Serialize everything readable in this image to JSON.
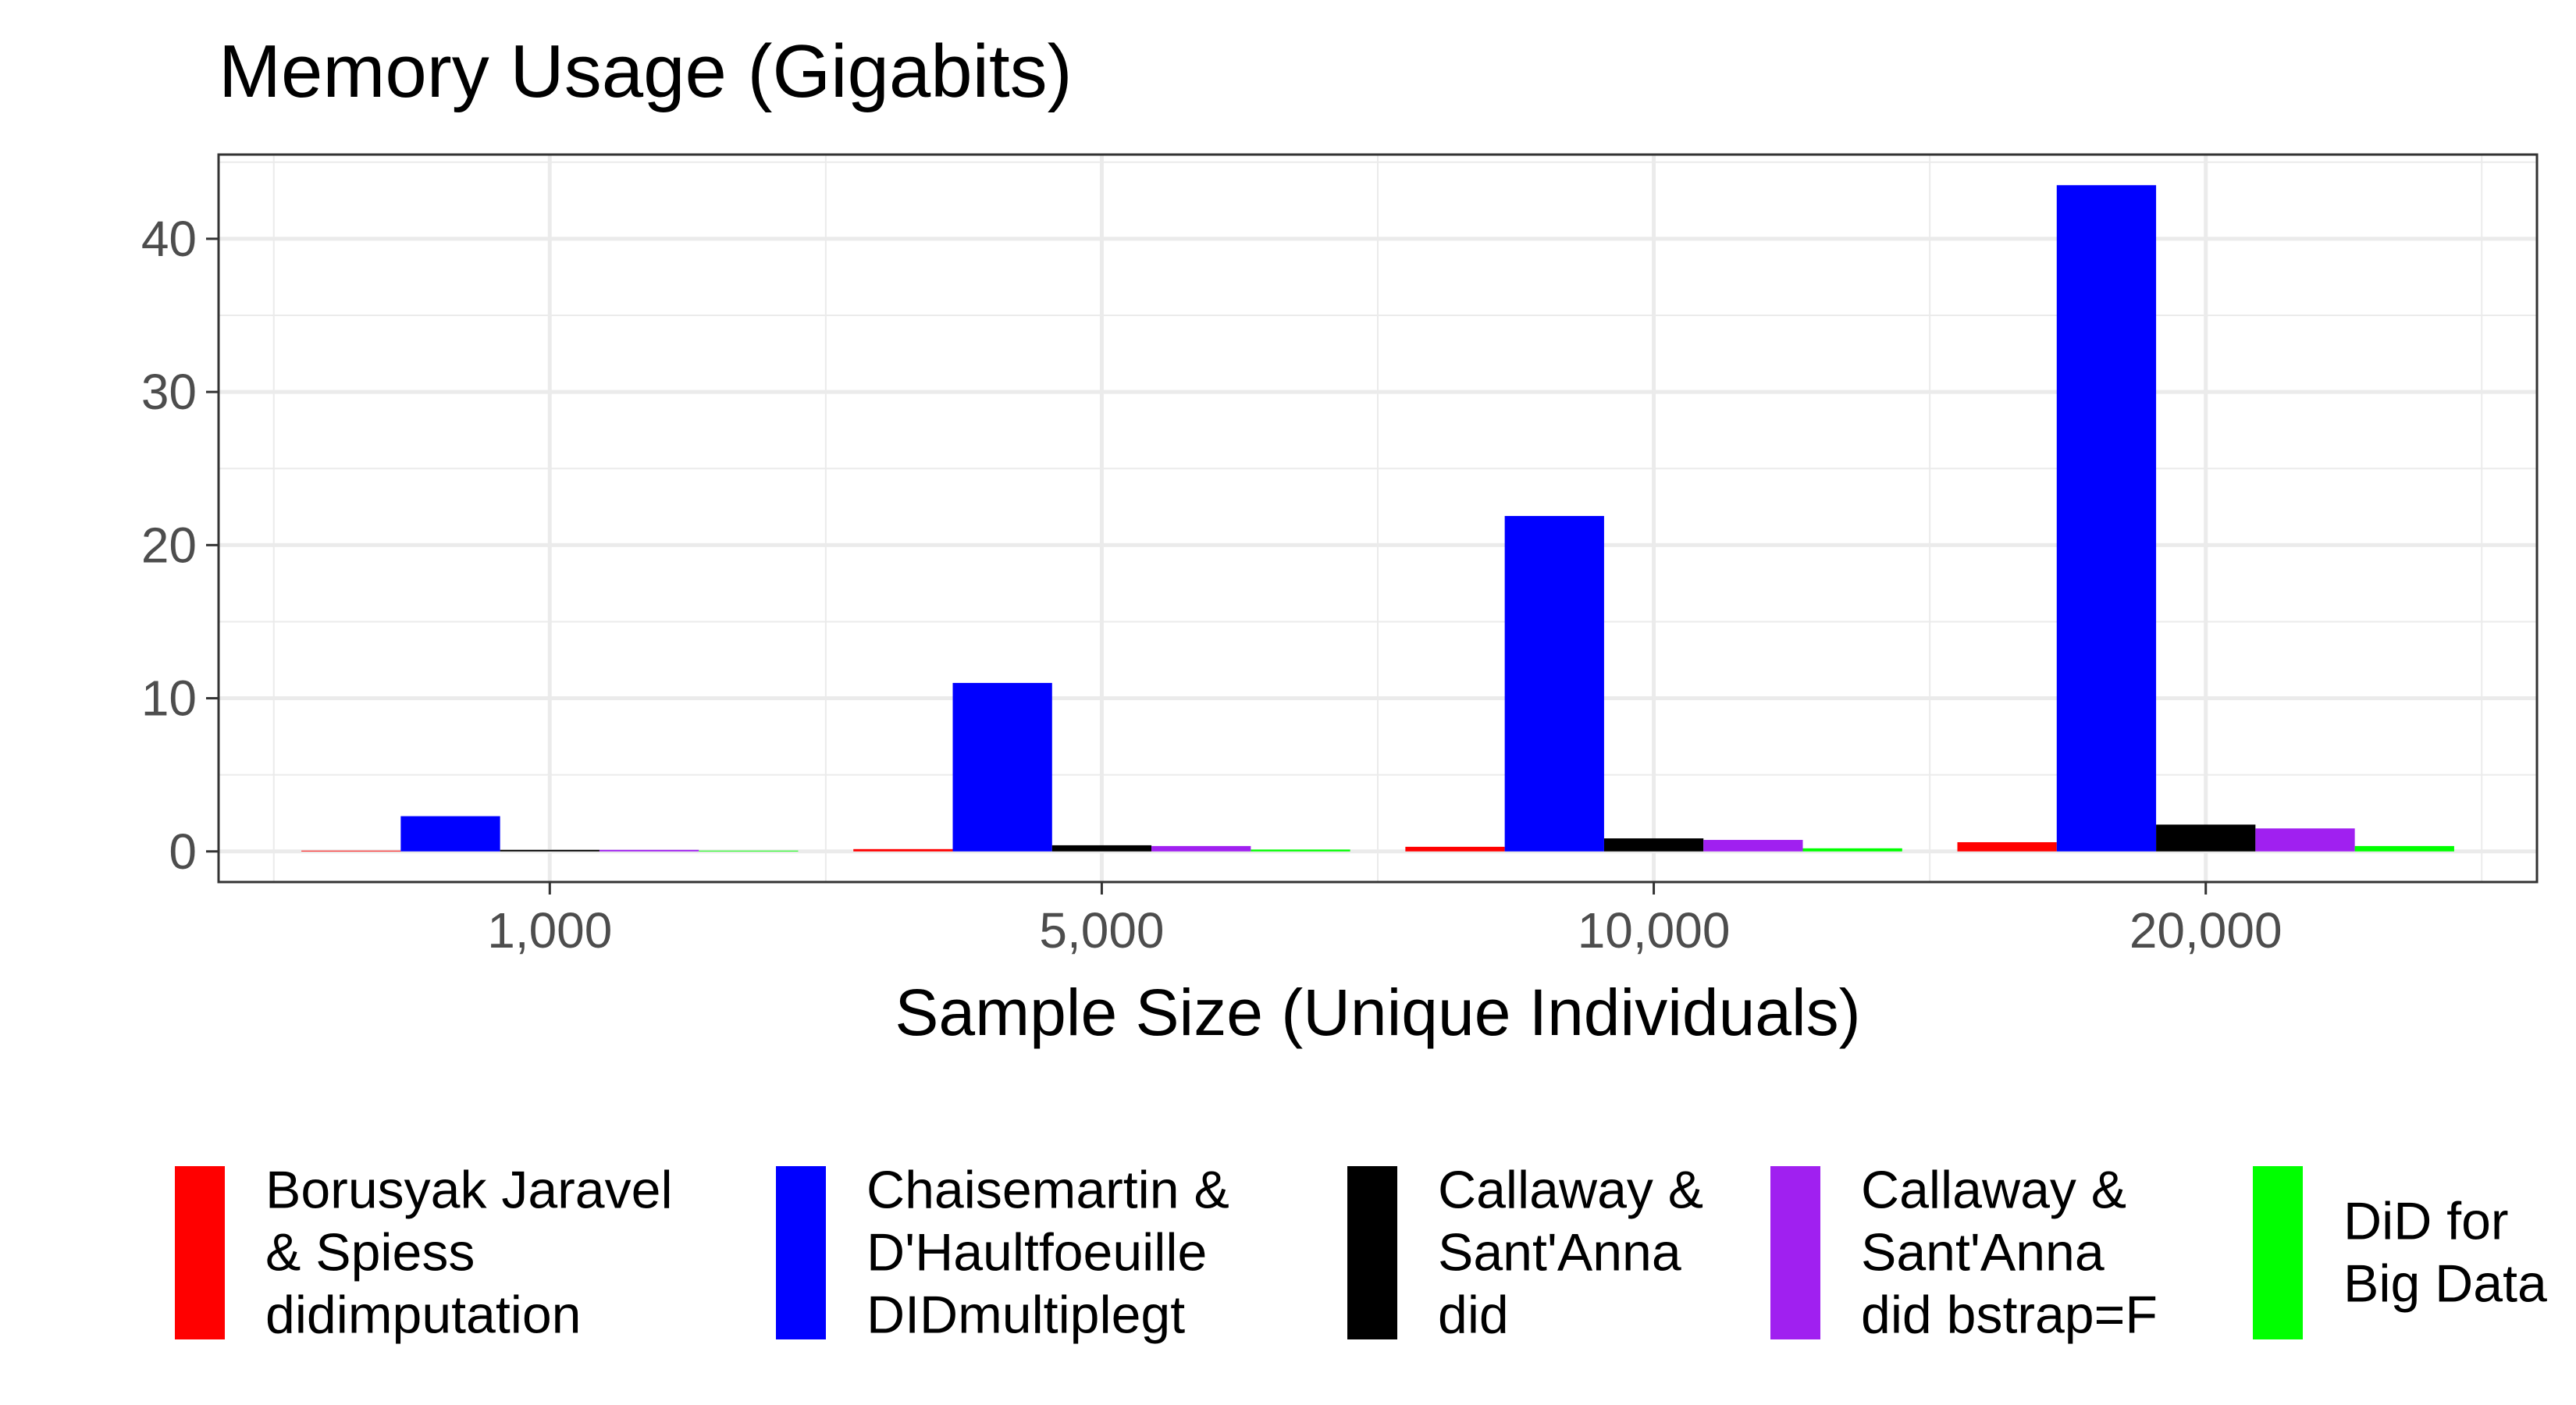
{
  "chart_data": {
    "type": "bar",
    "title": "Memory Usage (Gigabits)",
    "xlabel": "Sample Size (Unique Individuals)",
    "ylabel": "",
    "categories": [
      "1,000",
      "5,000",
      "10,000",
      "20,000"
    ],
    "ylim": [
      -2,
      45.5
    ],
    "yticks": [
      0,
      10,
      20,
      30,
      40
    ],
    "grid": true,
    "legend_position": "bottom",
    "series": [
      {
        "name": "Borusyak Jaravel & Spiess didimputation",
        "label_lines": [
          "Borusyak Jaravel",
          "& Spiess",
          "didimputation"
        ],
        "color": "#ff0000",
        "values": [
          0.05,
          0.15,
          0.3,
          0.6
        ]
      },
      {
        "name": "Chaisemartin & D'Haultfoeuille DIDmultiplegt",
        "label_lines": [
          "Chaisemartin &",
          "D'Haultfoeuille",
          "DIDmultiplegt"
        ],
        "color": "#0000ff",
        "values": [
          2.3,
          11.0,
          21.9,
          43.5
        ]
      },
      {
        "name": "Callaway & Sant'Anna did",
        "label_lines": [
          "Callaway &",
          "Sant'Anna",
          "did"
        ],
        "color": "#000000",
        "values": [
          0.1,
          0.4,
          0.85,
          1.75
        ]
      },
      {
        "name": "Callaway & Sant'Anna did bstrap=F",
        "label_lines": [
          "Callaway &",
          "Sant'Anna",
          "did bstrap=F"
        ],
        "color": "#a020f0",
        "values": [
          0.1,
          0.35,
          0.75,
          1.5
        ]
      },
      {
        "name": "DiD for Big Data",
        "label_lines": [
          "DiD for",
          "Big Data"
        ],
        "color": "#00ff00",
        "values": [
          0.05,
          0.12,
          0.2,
          0.35
        ]
      }
    ]
  }
}
